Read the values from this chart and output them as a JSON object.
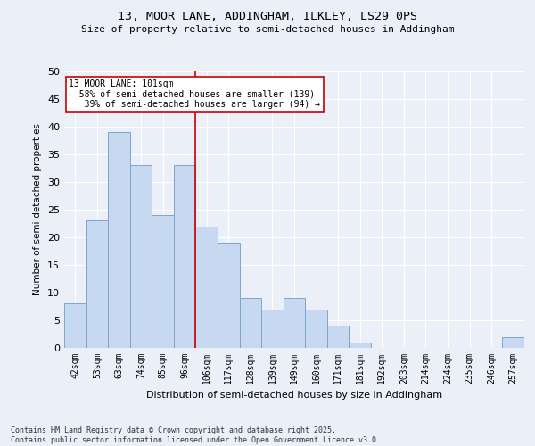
{
  "title": "13, MOOR LANE, ADDINGHAM, ILKLEY, LS29 0PS",
  "subtitle": "Size of property relative to semi-detached houses in Addingham",
  "xlabel": "Distribution of semi-detached houses by size in Addingham",
  "ylabel": "Number of semi-detached properties",
  "categories": [
    "42sqm",
    "53sqm",
    "63sqm",
    "74sqm",
    "85sqm",
    "96sqm",
    "106sqm",
    "117sqm",
    "128sqm",
    "139sqm",
    "149sqm",
    "160sqm",
    "171sqm",
    "181sqm",
    "192sqm",
    "203sqm",
    "214sqm",
    "224sqm",
    "235sqm",
    "246sqm",
    "257sqm"
  ],
  "values": [
    8,
    23,
    39,
    33,
    24,
    33,
    22,
    19,
    9,
    7,
    9,
    7,
    4,
    1,
    0,
    0,
    0,
    0,
    0,
    0,
    2
  ],
  "bar_color": "#c6d9f0",
  "bar_edge_color": "#7ea6c8",
  "background_color": "#eaeff8",
  "grid_color": "#ffffff",
  "vline_x": 5.5,
  "vline_color": "#cc0000",
  "annotation_line1": "13 MOOR LANE: 101sqm",
  "annotation_line2": "← 58% of semi-detached houses are smaller (139)",
  "annotation_line3": "   39% of semi-detached houses are larger (94) →",
  "annotation_box_color": "#ffffff",
  "annotation_box_edge": "#cc0000",
  "footnote": "Contains HM Land Registry data © Crown copyright and database right 2025.\nContains public sector information licensed under the Open Government Licence v3.0.",
  "ylim": [
    0,
    50
  ],
  "yticks": [
    0,
    5,
    10,
    15,
    20,
    25,
    30,
    35,
    40,
    45,
    50
  ]
}
